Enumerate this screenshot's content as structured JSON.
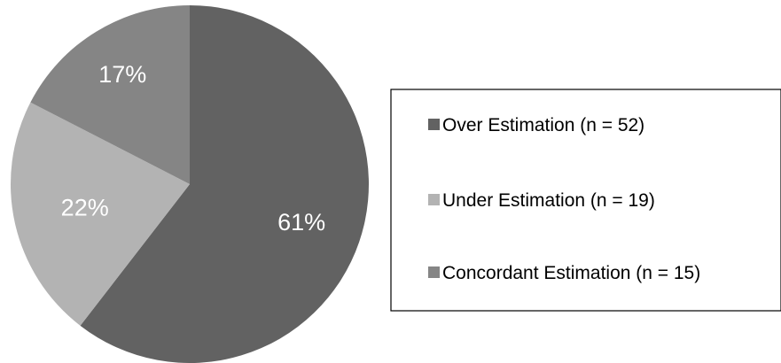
{
  "chart_data": {
    "type": "pie",
    "slices": [
      {
        "label": "Over Estimation (n = 52)",
        "value": 52,
        "percent_label": "61%",
        "color": "#626262"
      },
      {
        "label": "Under Estimation (n = 19)",
        "value": 19,
        "percent_label": "22%",
        "color": "#b3b3b3"
      },
      {
        "label": "Concordant Estimation (n = 15)",
        "value": 15,
        "percent_label": "17%",
        "color": "#858585"
      }
    ],
    "legend_position": "right"
  }
}
